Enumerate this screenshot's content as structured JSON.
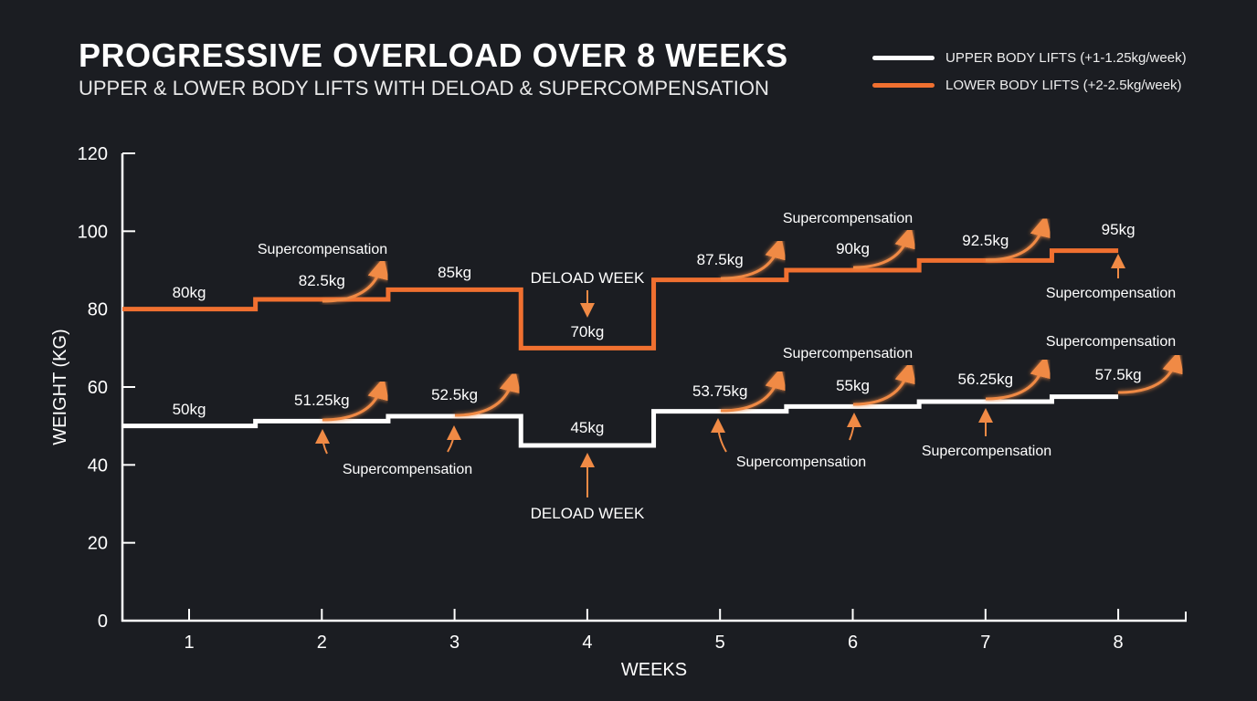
{
  "title": "PROGRESSIVE OVERLOAD OVER 8 WEEKS",
  "subtitle": "UPPER & LOWER BODY LIFTS WITH DELOAD & SUPERCOMPENSATION",
  "colors": {
    "background": "#1b1d22",
    "upper": "#ffffff",
    "lower": "#f07030",
    "annotation_arrow": "#f08a45"
  },
  "chart_data": {
    "type": "line",
    "step": true,
    "title": "PROGRESSIVE OVERLOAD OVER 8 WEEKS",
    "xlabel": "WEEKS",
    "ylabel": "WEIGHT (KG)",
    "x": [
      1,
      2,
      3,
      4,
      5,
      6,
      7,
      8
    ],
    "ylim": [
      0,
      120
    ],
    "yticks": [
      0,
      20,
      40,
      60,
      80,
      100,
      120
    ],
    "grid": false,
    "legend": "top-right",
    "series": [
      {
        "name": "UPPER BODY LIFTS (+1-1.25kg/week)",
        "color": "#ffffff",
        "values": [
          50,
          51.25,
          52.5,
          45,
          53.75,
          55,
          56.25,
          57.5
        ],
        "labels": [
          "50kg",
          "51.25kg",
          "52.5kg",
          "45kg",
          "53.75kg",
          "55kg",
          "56.25kg",
          "57.5kg"
        ]
      },
      {
        "name": "LOWER BODY LIFTS (+2-2.5kg/week)",
        "color": "#f07030",
        "values": [
          80,
          82.5,
          85,
          70,
          87.5,
          90,
          92.5,
          95
        ],
        "labels": [
          "80kg",
          "82.5kg",
          "85kg",
          "70kg",
          "87.5kg",
          "90kg",
          "92.5kg",
          "95kg"
        ]
      }
    ],
    "annotations": {
      "supercompensation": "Supercompensation",
      "deload": "DELOAD WEEK"
    }
  }
}
